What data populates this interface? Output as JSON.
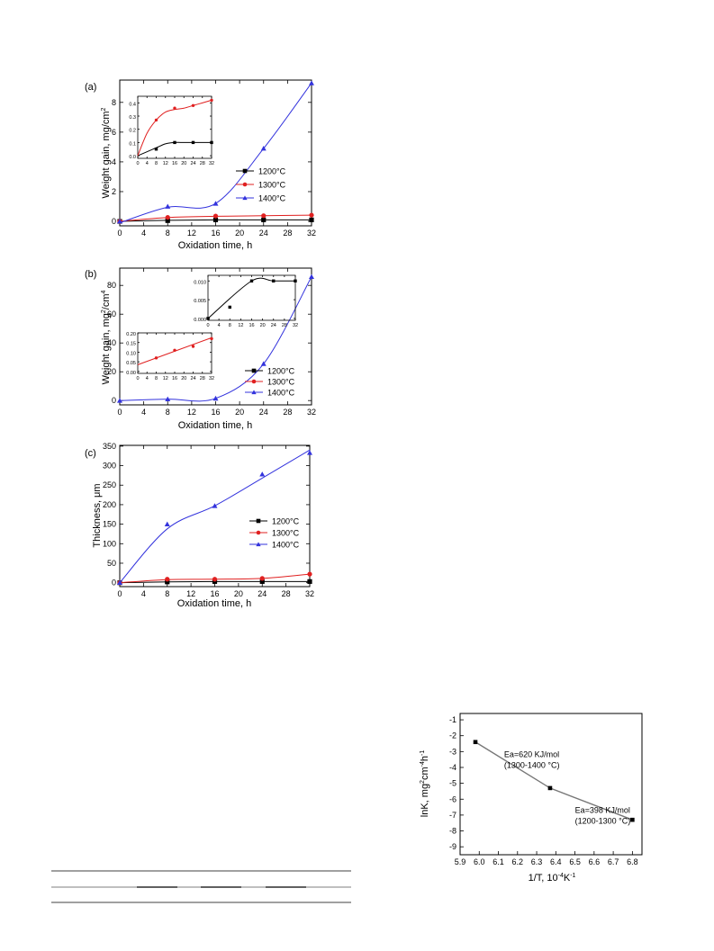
{
  "chart_data": [
    {
      "id": "a",
      "type": "line",
      "panel_label": "(a)",
      "xlabel": "Oxidation time, h",
      "ylabel": "Weight gain, mg/cm",
      "ylabel_sup": "2",
      "xlim": [
        0,
        32
      ],
      "ylim": [
        -0.3,
        9.5
      ],
      "xticks": [
        0,
        4,
        8,
        12,
        16,
        20,
        24,
        28,
        32
      ],
      "yticks": [
        0,
        2,
        4,
        6,
        8
      ],
      "legend": {
        "position": "right",
        "entries": [
          "1200°C",
          "1300°C",
          "1400°C"
        ]
      },
      "series": [
        {
          "name": "1200°C",
          "color": "#000000",
          "marker": "square",
          "points": [
            [
              0,
              0
            ],
            [
              8,
              0.05
            ],
            [
              16,
              0.1
            ],
            [
              24,
              0.1
            ],
            [
              32,
              0.1
            ]
          ],
          "curve": [
            [
              0,
              0
            ],
            [
              8,
              0.07
            ],
            [
              16,
              0.1
            ],
            [
              24,
              0.1
            ],
            [
              32,
              0.1
            ]
          ]
        },
        {
          "name": "1300°C",
          "color": "#e02020",
          "marker": "circle",
          "points": [
            [
              0,
              0
            ],
            [
              8,
              0.27
            ],
            [
              16,
              0.36
            ],
            [
              24,
              0.38
            ],
            [
              32,
              0.42
            ]
          ],
          "curve": [
            [
              0,
              0
            ],
            [
              8,
              0.26
            ],
            [
              16,
              0.34
            ],
            [
              24,
              0.38
            ],
            [
              32,
              0.42
            ]
          ]
        },
        {
          "name": "1400°C",
          "color": "#3333dd",
          "marker": "triangle",
          "points": [
            [
              0,
              0
            ],
            [
              8,
              1.0
            ],
            [
              16,
              1.2
            ],
            [
              24,
              4.9
            ],
            [
              32,
              9.3
            ]
          ],
          "curve": [
            [
              0,
              -0.1
            ],
            [
              8,
              0.95
            ],
            [
              16,
              1.2
            ],
            [
              24,
              4.9
            ],
            [
              32,
              9.3
            ]
          ]
        }
      ],
      "insets": [
        {
          "xlim": [
            0,
            32
          ],
          "ylim": [
            -0.02,
            0.45
          ],
          "xticks": [
            0,
            4,
            8,
            12,
            16,
            20,
            24,
            28,
            32
          ],
          "yticks": [
            0.0,
            0.1,
            0.2,
            0.3,
            0.4
          ],
          "ytick_labels": [
            "0.0",
            "0.1",
            "0.2",
            "0.3",
            "0.4"
          ],
          "series": [
            {
              "color": "#000000",
              "marker": "square",
              "points": [
                [
                  8,
                  0.05
                ],
                [
                  16,
                  0.1
                ],
                [
                  24,
                  0.1
                ],
                [
                  32,
                  0.1
                ]
              ],
              "curve": [
                [
                  0,
                  0
                ],
                [
                  4,
                  0.03
                ],
                [
                  8,
                  0.06
                ],
                [
                  12,
                  0.09
                ],
                [
                  16,
                  0.1
                ],
                [
                  20,
                  0.1
                ],
                [
                  24,
                  0.1
                ],
                [
                  32,
                  0.1
                ]
              ]
            },
            {
              "color": "#e02020",
              "marker": "circle",
              "points": [
                [
                  8,
                  0.27
                ],
                [
                  16,
                  0.36
                ],
                [
                  24,
                  0.38
                ],
                [
                  32,
                  0.42
                ]
              ],
              "curve": [
                [
                  0,
                  0
                ],
                [
                  4,
                  0.17
                ],
                [
                  8,
                  0.27
                ],
                [
                  12,
                  0.33
                ],
                [
                  16,
                  0.35
                ],
                [
                  20,
                  0.36
                ],
                [
                  24,
                  0.38
                ],
                [
                  28,
                  0.4
                ],
                [
                  32,
                  0.42
                ]
              ]
            }
          ]
        }
      ]
    },
    {
      "id": "b",
      "type": "line",
      "panel_label": "(b)",
      "xlabel": "Oxidation time, h",
      "ylabel": "Weight gain, mg",
      "ylabel_sup": "2",
      "ylabel_tail": "/cm",
      "ylabel_sup2": "4",
      "xlim": [
        0,
        32
      ],
      "ylim": [
        -3,
        92
      ],
      "xticks": [
        0,
        4,
        8,
        12,
        16,
        20,
        24,
        28,
        32
      ],
      "yticks": [
        0,
        20,
        40,
        60,
        80
      ],
      "legend": {
        "position": "right",
        "entries": [
          "1200°C",
          "1300°C",
          "1400°C"
        ]
      },
      "series": [
        {
          "name": "1200°C",
          "color": "#000000",
          "marker": "square",
          "points": [
            [
              0,
              0
            ],
            [
              8,
              0.003
            ],
            [
              16,
              0.01
            ],
            [
              24,
              0.01
            ],
            [
              32,
              0.01
            ]
          ],
          "curve": [
            [
              0,
              0
            ],
            [
              32,
              0.01
            ]
          ]
        },
        {
          "name": "1300°C",
          "color": "#e02020",
          "marker": "circle",
          "points": [
            [
              0,
              0
            ],
            [
              8,
              0.07
            ],
            [
              16,
              0.11
            ],
            [
              24,
              0.13
            ],
            [
              32,
              0.17
            ]
          ],
          "curve": [
            [
              0,
              0
            ],
            [
              32,
              0.17
            ]
          ]
        },
        {
          "name": "1400°C",
          "color": "#3333dd",
          "marker": "triangle",
          "points": [
            [
              0,
              0
            ],
            [
              8,
              1.0
            ],
            [
              16,
              1.5
            ],
            [
              24,
              25.5
            ],
            [
              32,
              86
            ]
          ],
          "curve": [
            [
              0,
              0
            ],
            [
              8,
              1.0
            ],
            [
              16,
              1.5
            ],
            [
              24,
              25.5
            ],
            [
              32,
              86
            ]
          ]
        }
      ],
      "insets": [
        {
          "xlim": [
            0,
            32
          ],
          "ylim": [
            -0.0005,
            0.0115
          ],
          "xticks": [
            0,
            4,
            8,
            12,
            16,
            20,
            24,
            28,
            32
          ],
          "yticks": [
            0.0,
            0.005,
            0.01
          ],
          "ytick_labels": [
            "0.000",
            "0.005",
            "0.010"
          ],
          "series": [
            {
              "color": "#000000",
              "marker": "square",
              "points": [
                [
                  0,
                  0
                ],
                [
                  8,
                  0.003
                ],
                [
                  16,
                  0.01
                ],
                [
                  24,
                  0.01
                ],
                [
                  32,
                  0.01
                ]
              ],
              "curve": [
                [
                  0,
                  0
                ],
                [
                  16,
                  0.01
                ],
                [
                  24,
                  0.01
                ],
                [
                  32,
                  0.01
                ]
              ]
            }
          ]
        },
        {
          "xlim": [
            0,
            32
          ],
          "ylim": [
            -0.01,
            0.2
          ],
          "xticks": [
            0,
            4,
            8,
            12,
            16,
            20,
            24,
            28,
            32
          ],
          "yticks": [
            0.0,
            0.05,
            0.1,
            0.15,
            0.2
          ],
          "ytick_labels": [
            "0.00",
            "0.05",
            "0.10",
            "0.15",
            "0.20"
          ],
          "series": [
            {
              "color": "#e02020",
              "marker": "circle",
              "points": [
                [
                  8,
                  0.07
                ],
                [
                  16,
                  0.11
                ],
                [
                  24,
                  0.13
                ],
                [
                  32,
                  0.17
                ]
              ],
              "curve": [
                [
                  0,
                  0.035
                ],
                [
                  32,
                  0.175
                ]
              ]
            }
          ]
        }
      ]
    },
    {
      "id": "c",
      "type": "line",
      "panel_label": "(c)",
      "xlabel": "Oxidation time, h",
      "ylabel": "Thickness, μm",
      "xlim": [
        0,
        32
      ],
      "ylim": [
        -10,
        352
      ],
      "xticks": [
        0,
        4,
        8,
        12,
        16,
        20,
        24,
        28,
        32
      ],
      "yticks": [
        0,
        50,
        100,
        150,
        200,
        250,
        300,
        350
      ],
      "legend": {
        "position": "center",
        "entries": [
          "1200°C",
          "1300°C",
          "1400°C"
        ]
      },
      "series": [
        {
          "name": "1200°C",
          "color": "#000000",
          "marker": "square",
          "points": [
            [
              0,
              0
            ],
            [
              8,
              2
            ],
            [
              16,
              3
            ],
            [
              24,
              3
            ],
            [
              32,
              3
            ]
          ],
          "curve": [
            [
              0,
              0
            ],
            [
              8,
              2
            ],
            [
              16,
              3
            ],
            [
              24,
              3
            ],
            [
              32,
              3
            ]
          ]
        },
        {
          "name": "1300°C",
          "color": "#e02020",
          "marker": "circle",
          "points": [
            [
              0,
              0
            ],
            [
              8,
              9
            ],
            [
              16,
              9
            ],
            [
              24,
              11
            ],
            [
              32,
              22
            ]
          ],
          "curve": [
            [
              0,
              0
            ],
            [
              8,
              8
            ],
            [
              16,
              9
            ],
            [
              24,
              11
            ],
            [
              32,
              22
            ]
          ]
        },
        {
          "name": "1400°C",
          "color": "#3333dd",
          "marker": "triangle",
          "points": [
            [
              0,
              0
            ],
            [
              8,
              150
            ],
            [
              16,
              197
            ],
            [
              24,
              278
            ],
            [
              32,
              333
            ]
          ],
          "curve": [
            [
              0,
              0
            ],
            [
              8,
              138
            ],
            [
              16,
              197
            ],
            [
              24,
              268
            ],
            [
              32,
              340
            ]
          ]
        }
      ]
    },
    {
      "id": "d",
      "type": "line",
      "xlabel": "1/T, 10",
      "xlabel_sup": "-4",
      "xlabel_tail": "K",
      "xlabel_sup2": "-1",
      "ylabel": "lnK, mg",
      "ylabel_sup": "2",
      "ylabel_mid": "cm",
      "ylabel_sup2": "-4",
      "ylabel_mid2": "h",
      "ylabel_sup3": "-1",
      "xlim": [
        5.9,
        6.85
      ],
      "ylim": [
        -9.5,
        -0.6
      ],
      "xticks": [
        5.9,
        6.0,
        6.1,
        6.2,
        6.3,
        6.4,
        6.5,
        6.6,
        6.7,
        6.8
      ],
      "xtick_labels": [
        "5.9",
        "6.0",
        "6.1",
        "6.2",
        "6.3",
        "6.4",
        "6.5",
        "6.6",
        "6.7",
        "6.8"
      ],
      "yticks": [
        -1,
        -2,
        -3,
        -4,
        -5,
        -6,
        -7,
        -8,
        -9
      ],
      "series": [
        {
          "color": "#777777",
          "marker": "square",
          "marker_color": "#000000",
          "points": [
            [
              5.98,
              -2.4
            ],
            [
              6.37,
              -5.3
            ],
            [
              6.8,
              -7.3
            ]
          ]
        }
      ],
      "annotations": [
        {
          "lines": [
            "Ea=620 KJ/mol",
            "(1300-1400 °C)"
          ],
          "x": 6.13,
          "y": -3.35
        },
        {
          "lines": [
            "Ea=398 KJ/mol",
            "(1200-1300 °C)"
          ],
          "x": 6.5,
          "y": -6.85
        }
      ]
    }
  ]
}
